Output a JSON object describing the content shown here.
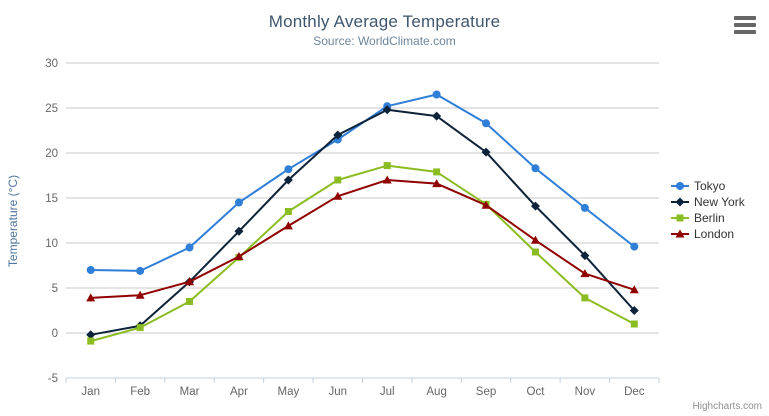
{
  "chart": {
    "title": "Monthly Average Temperature",
    "subtitle": "Source: WorldClimate.com",
    "credits": "Highcharts.com",
    "menu_icon": "hamburger-menu-icon",
    "colors": {
      "title_text": "#3e576f",
      "subtitle_text": "#6d869f",
      "axis_label_text": "#666666",
      "axis_title_text": "#4d759e",
      "grid_line": "#c8c8c8",
      "axis_line": "#c0d0e0",
      "legend_text": "#333333",
      "credits_text": "#909090"
    }
  },
  "chart_data": {
    "type": "line",
    "title": "Monthly Average Temperature",
    "subtitle": "Source: WorldClimate.com",
    "categories": [
      "Jan",
      "Feb",
      "Mar",
      "Apr",
      "May",
      "Jun",
      "Jul",
      "Aug",
      "Sep",
      "Oct",
      "Nov",
      "Dec"
    ],
    "series": [
      {
        "name": "Tokyo",
        "color": "#2f7ed8",
        "marker": "circle",
        "values": [
          7.0,
          6.9,
          9.5,
          14.5,
          18.2,
          21.5,
          25.2,
          26.5,
          23.3,
          18.3,
          13.9,
          9.6
        ]
      },
      {
        "name": "New York",
        "color": "#0d233a",
        "marker": "diamond",
        "values": [
          -0.2,
          0.8,
          5.7,
          11.3,
          17.0,
          22.0,
          24.8,
          24.1,
          20.1,
          14.1,
          8.6,
          2.5
        ]
      },
      {
        "name": "Berlin",
        "color": "#8bbc21",
        "marker": "square",
        "values": [
          -0.9,
          0.6,
          3.5,
          8.4,
          13.5,
          17.0,
          18.6,
          17.9,
          14.3,
          9.0,
          3.9,
          1.0
        ]
      },
      {
        "name": "London",
        "color": "#910000",
        "marker": "triangle",
        "values": [
          3.9,
          4.2,
          5.7,
          8.5,
          11.9,
          15.2,
          17.0,
          16.6,
          14.2,
          10.3,
          6.6,
          4.8
        ]
      }
    ],
    "xlabel": "",
    "ylabel": "Temperature (°C)",
    "ylim": [
      -5,
      30
    ],
    "ytick_step": 5,
    "grid": true,
    "legend_position": "right"
  }
}
